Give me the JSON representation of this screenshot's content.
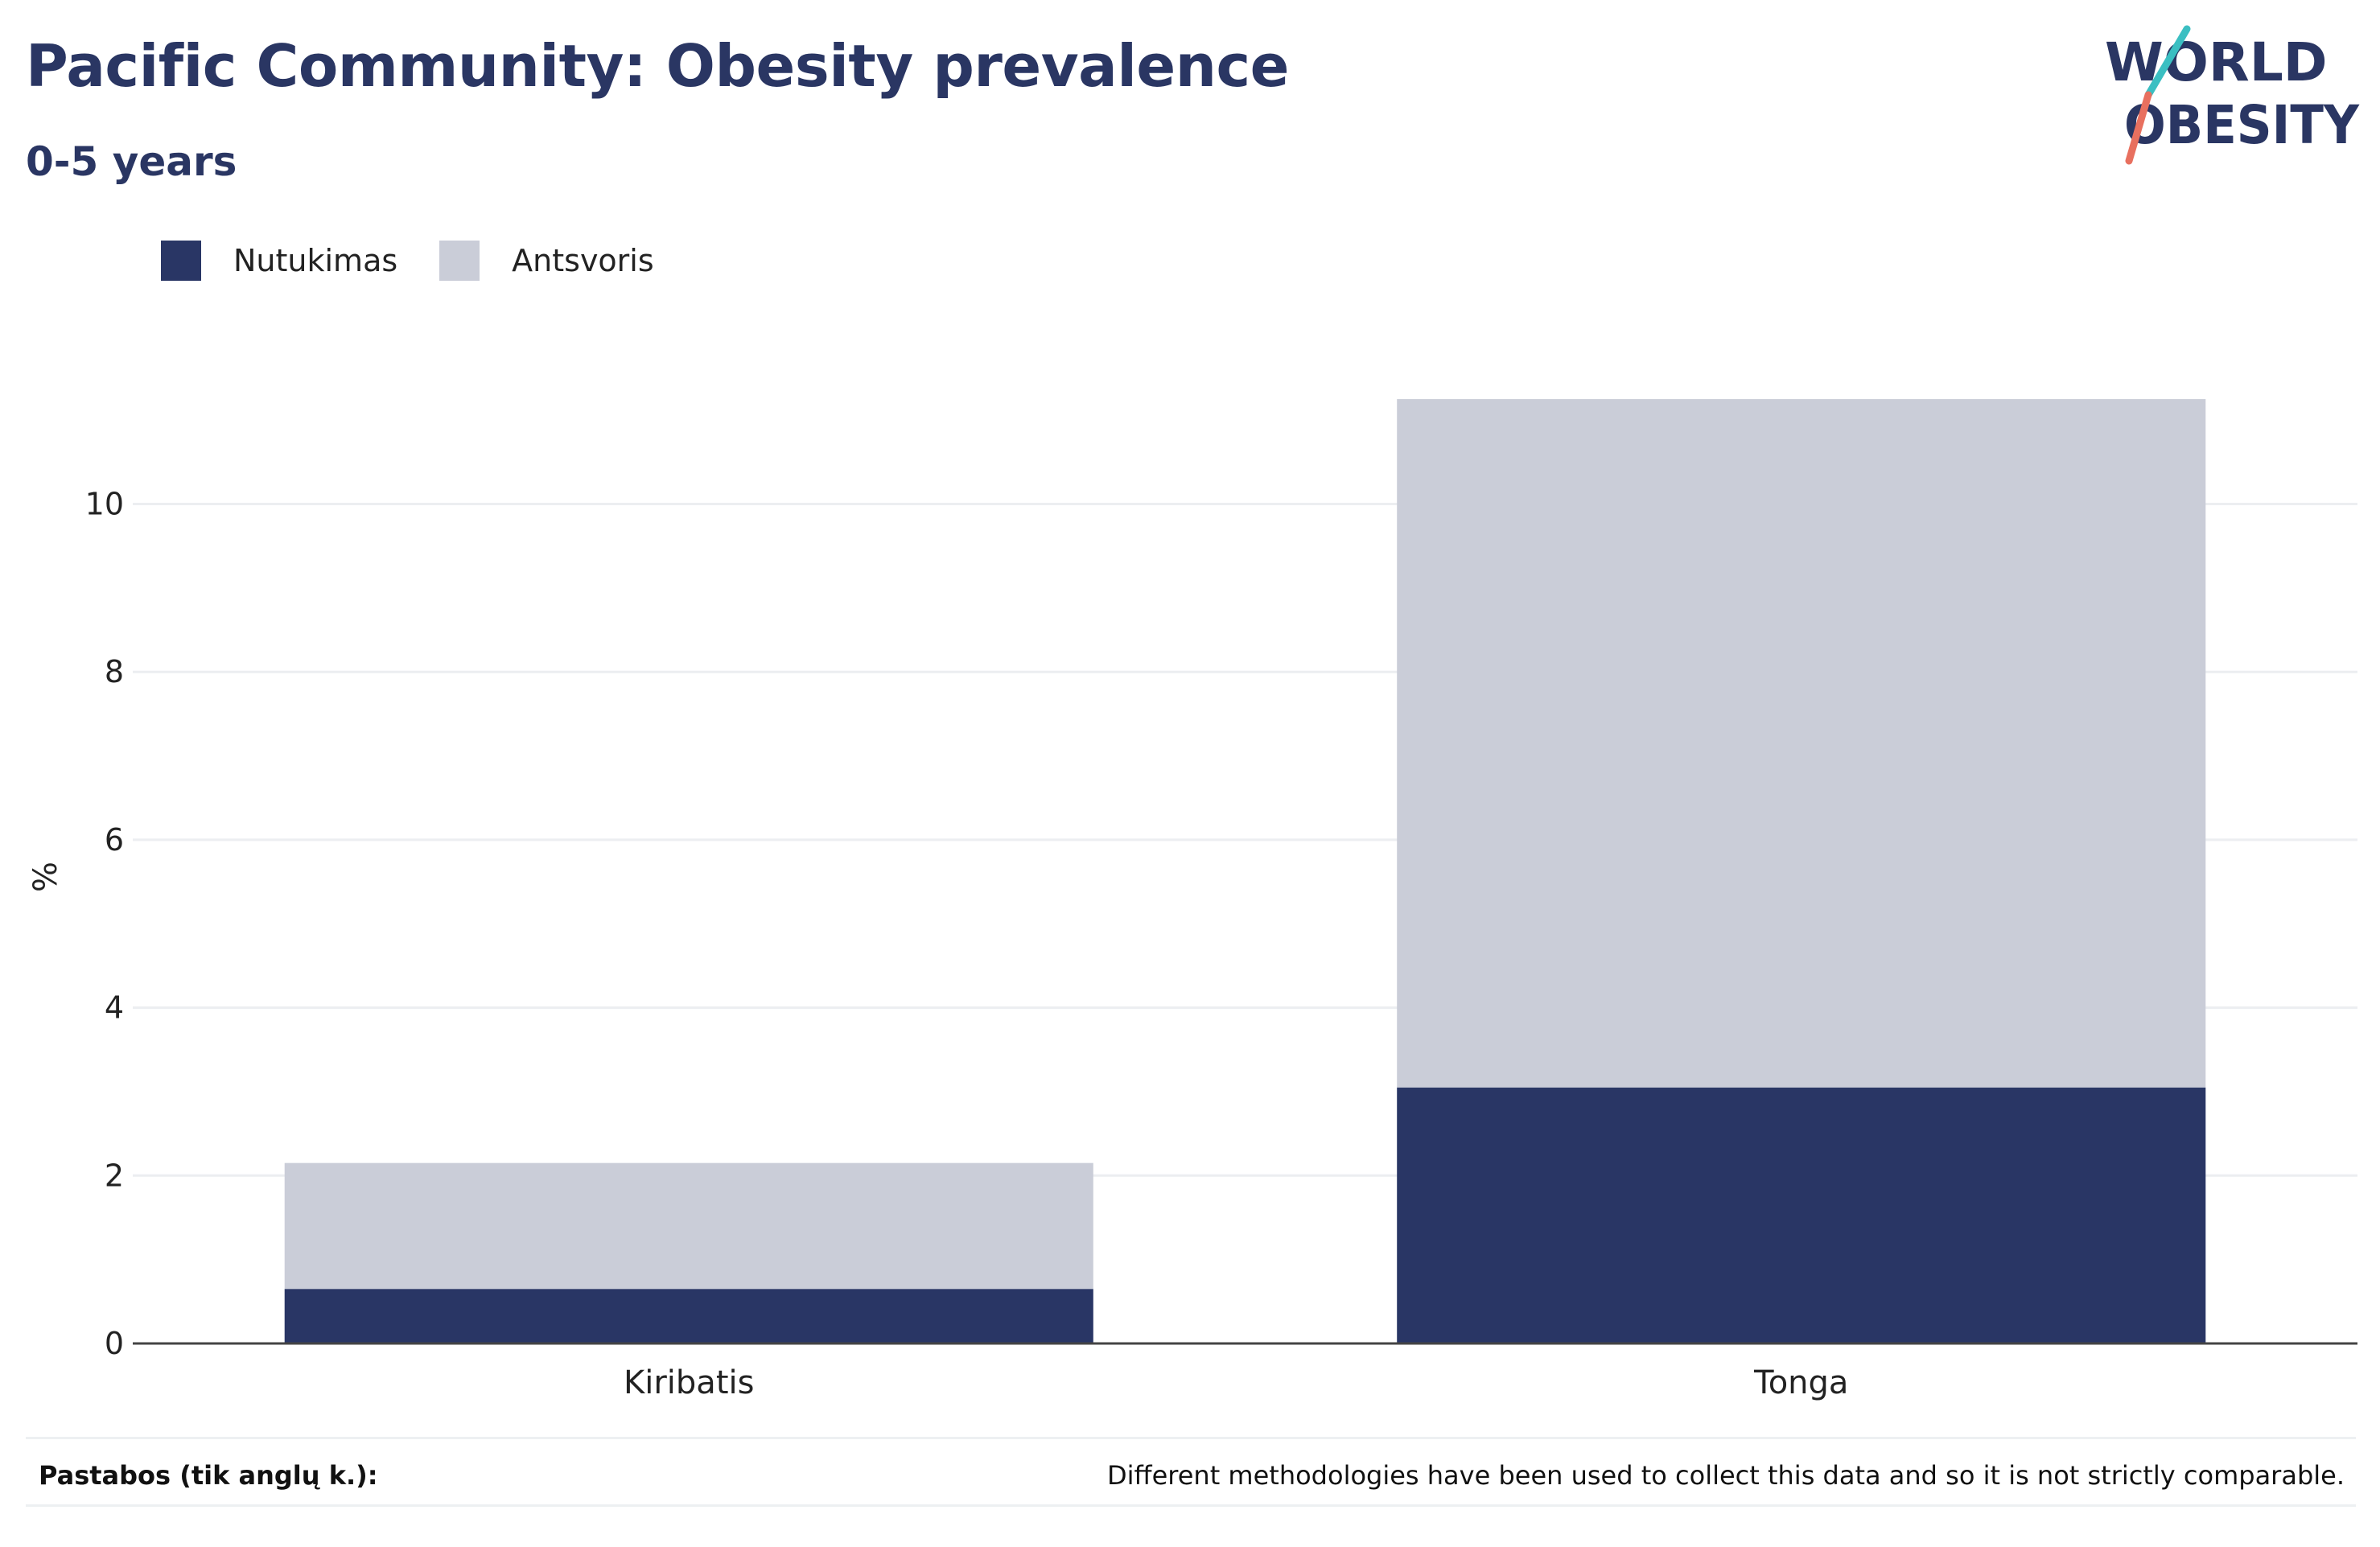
{
  "header": {
    "title": "Pacific Community: Obesity prevalence",
    "subtitle": "0-5 years"
  },
  "logo": {
    "line1": "WORLD",
    "line2": "OBESITY",
    "brand_color": "#2a3663",
    "accent_teal": "#3bbfc2",
    "accent_coral": "#e8705f"
  },
  "legend": {
    "items": [
      {
        "label": "Nutukimas",
        "color": "#293665"
      },
      {
        "label": "Antsvoris",
        "color": "#cacdd8"
      }
    ],
    "position": "top-left"
  },
  "chart_data": {
    "type": "bar",
    "stacked": true,
    "categories": [
      "Kiribatis",
      "Tonga"
    ],
    "series": [
      {
        "name": "Nutukimas",
        "values": [
          0.65,
          3.05
        ],
        "color": "#293665"
      },
      {
        "name": "Antsvoris",
        "values": [
          1.5,
          8.2
        ],
        "color": "#cacdd8"
      }
    ],
    "ylabel": "%",
    "xlabel": "",
    "ylim": [
      0,
      11.5
    ],
    "yticks": [
      0,
      2,
      4,
      6,
      8,
      10
    ],
    "grid": true
  },
  "footer": {
    "notes_label": "Pastabos (tik anglų k.):",
    "notes_text": "Different methodologies have been used to collect this data and so it is not strictly comparable."
  }
}
